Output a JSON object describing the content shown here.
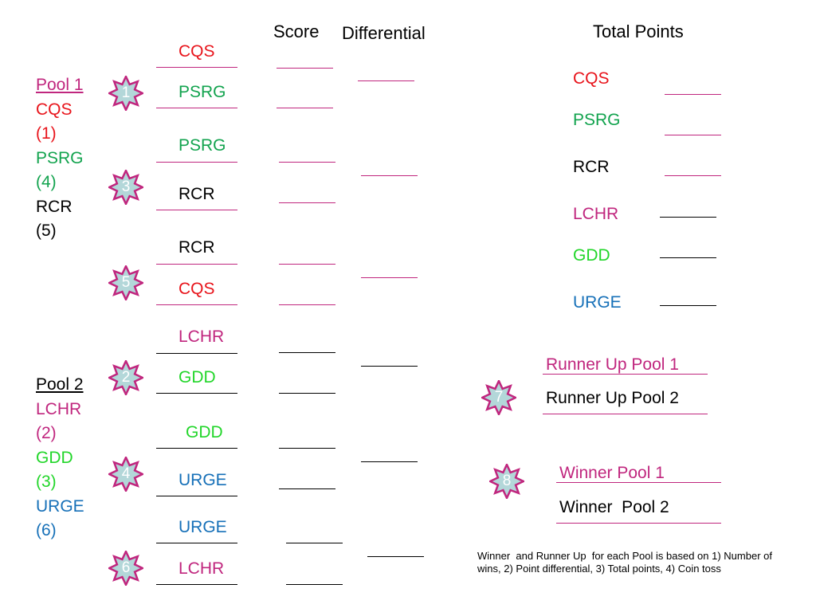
{
  "headers": {
    "score": "Score",
    "differential": "Differential",
    "total_points": "Total Points"
  },
  "pools": {
    "pool1": {
      "title": "Pool 1",
      "entries": [
        {
          "name": "CQS",
          "seed": "(1)"
        },
        {
          "name": "PSRG",
          "seed": "(4)"
        },
        {
          "name": "RCR",
          "seed": "(5)"
        }
      ]
    },
    "pool2": {
      "title": "Pool 2",
      "entries": [
        {
          "name": "LCHR",
          "seed": "(2)"
        },
        {
          "name": "GDD",
          "seed": "(3)"
        },
        {
          "name": "URGE",
          "seed": "(6)"
        }
      ]
    }
  },
  "games": [
    {
      "number": "1",
      "team_a": "CQS",
      "team_b": "PSRG"
    },
    {
      "number": "3",
      "team_a": "PSRG",
      "team_b": "RCR"
    },
    {
      "number": "5",
      "team_a": "RCR",
      "team_b": "CQS"
    },
    {
      "number": "2",
      "team_a": "LCHR",
      "team_b": "GDD"
    },
    {
      "number": "4",
      "team_a": "GDD",
      "team_b": "URGE"
    },
    {
      "number": "6",
      "team_a": "URGE",
      "team_b": "LCHR"
    }
  ],
  "total_points": [
    "CQS",
    "PSRG",
    "RCR",
    "LCHR",
    "GDD",
    "URGE"
  ],
  "finals": [
    {
      "number": "7",
      "team_a": "Runner Up Pool 1",
      "team_b": "Runner Up Pool 2"
    },
    {
      "number": "8",
      "team_a": "Winner Pool 1",
      "team_b": "Winner  Pool 2"
    }
  ],
  "note": "Winner  and Runner Up  for each Pool is based on 1) Number of wins, 2) Point differential, 3) Total points, 4) Coin toss",
  "colors": {
    "red": "#e8141b",
    "green": "#12a34e",
    "bright_green": "#22d62a",
    "blue": "#1670b8",
    "magenta": "#c0267e",
    "badge_fill": "#b3d7d9"
  },
  "icons": {
    "badge": "eight-point-star-icon"
  }
}
